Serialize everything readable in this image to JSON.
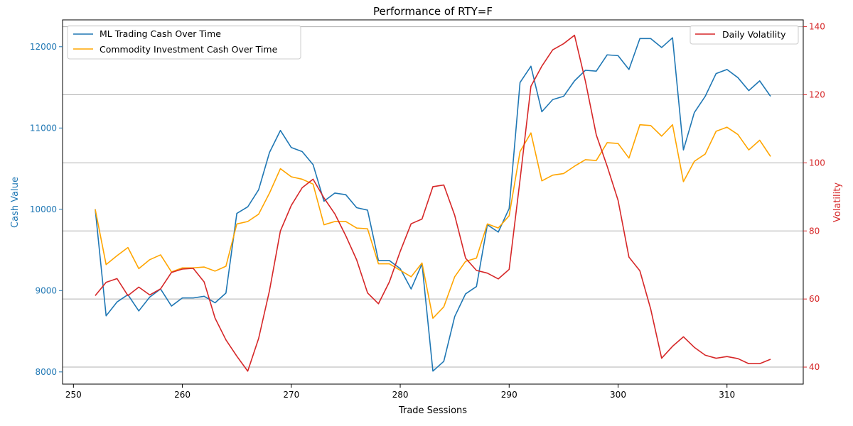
{
  "chart_data": {
    "type": "line",
    "title": "Performance of RTY=F",
    "xlabel": "Trade Sessions",
    "ylabel_left": "Cash Value",
    "ylabel_right": "Volatility",
    "xlim": [
      249,
      317
    ],
    "ylim_left": [
      7850,
      12330
    ],
    "ylim_right": [
      35,
      142
    ],
    "x_ticks": [
      250,
      260,
      270,
      280,
      290,
      300,
      310
    ],
    "y_left_ticks": [
      8000,
      9000,
      10000,
      11000,
      12000
    ],
    "y_right_ticks": [
      40,
      60,
      80,
      100,
      120,
      140
    ],
    "grid": "horizontal-right-axis",
    "legend_left": "top-left",
    "legend_right": "top-right",
    "colors": {
      "ml": "#1f77b4",
      "commodity": "#ffa500",
      "volatility": "#d62728",
      "left_axis": "#1f77b4",
      "right_axis": "#d62728",
      "grid": "#b0b0b0"
    },
    "x": [
      252,
      253,
      254,
      255,
      256,
      257,
      258,
      259,
      260,
      261,
      262,
      263,
      264,
      265,
      266,
      267,
      268,
      269,
      270,
      271,
      272,
      273,
      274,
      275,
      276,
      277,
      278,
      279,
      280,
      281,
      282,
      283,
      284,
      285,
      286,
      287,
      288,
      289,
      290,
      291,
      292,
      293,
      294,
      295,
      296,
      297,
      298,
      299,
      300,
      301,
      302,
      303,
      304,
      305,
      306,
      307,
      308,
      309,
      310,
      311,
      312,
      313,
      314
    ],
    "series": [
      {
        "name": "ML Trading Cash Over Time",
        "axis": "left",
        "values": [
          10000,
          8690,
          8860,
          8950,
          8750,
          8920,
          9020,
          8810,
          8910,
          8910,
          8930,
          8850,
          8970,
          9950,
          10030,
          10240,
          10700,
          10970,
          10760,
          10710,
          10550,
          10100,
          10200,
          10180,
          10020,
          9990,
          9370,
          9370,
          9270,
          9020,
          9330,
          8010,
          8130,
          8680,
          8960,
          9050,
          9810,
          9720,
          10010,
          11560,
          11760,
          11200,
          11350,
          11390,
          11580,
          11710,
          11700,
          11900,
          11890,
          11720,
          12100,
          12100,
          11990,
          12110,
          10730,
          11190,
          11390,
          11670,
          11720,
          11620,
          11460,
          11580,
          11390
        ]
      },
      {
        "name": "Commodity Investment Cash Over Time",
        "axis": "left",
        "values": [
          10000,
          9320,
          9430,
          9530,
          9270,
          9380,
          9440,
          9230,
          9280,
          9280,
          9290,
          9240,
          9300,
          9820,
          9850,
          9940,
          10200,
          10500,
          10400,
          10370,
          10310,
          9810,
          9850,
          9850,
          9770,
          9760,
          9330,
          9330,
          9250,
          9170,
          9340,
          8660,
          8800,
          9170,
          9360,
          9400,
          9820,
          9770,
          9920,
          10710,
          10940,
          10350,
          10420,
          10440,
          10530,
          10610,
          10600,
          10820,
          10810,
          10630,
          11040,
          11030,
          10900,
          11040,
          10340,
          10590,
          10680,
          10960,
          11010,
          10920,
          10730,
          10850,
          10650
        ]
      },
      {
        "name": "Daily Volatility",
        "axis": "right",
        "values": [
          61,
          64.9,
          66,
          61,
          63.5,
          61.2,
          63,
          67.8,
          68.8,
          69,
          65,
          54.4,
          48,
          43.2,
          38.8,
          48.4,
          62.5,
          80,
          87.5,
          92.7,
          95.2,
          89.7,
          85,
          78.6,
          71.5,
          61.8,
          58.6,
          65,
          74,
          82.1,
          83.5,
          93,
          93.5,
          84.6,
          72,
          68.4,
          67.6,
          65.9,
          68.7,
          95,
          122.5,
          128.4,
          133.2,
          135,
          137.5,
          124,
          108.2,
          99,
          89,
          72.3,
          68.3,
          57,
          42.6,
          46.1,
          48.9,
          45.8,
          43.5,
          42.6,
          43.1,
          42.5,
          41,
          41,
          42.3
        ]
      }
    ]
  }
}
